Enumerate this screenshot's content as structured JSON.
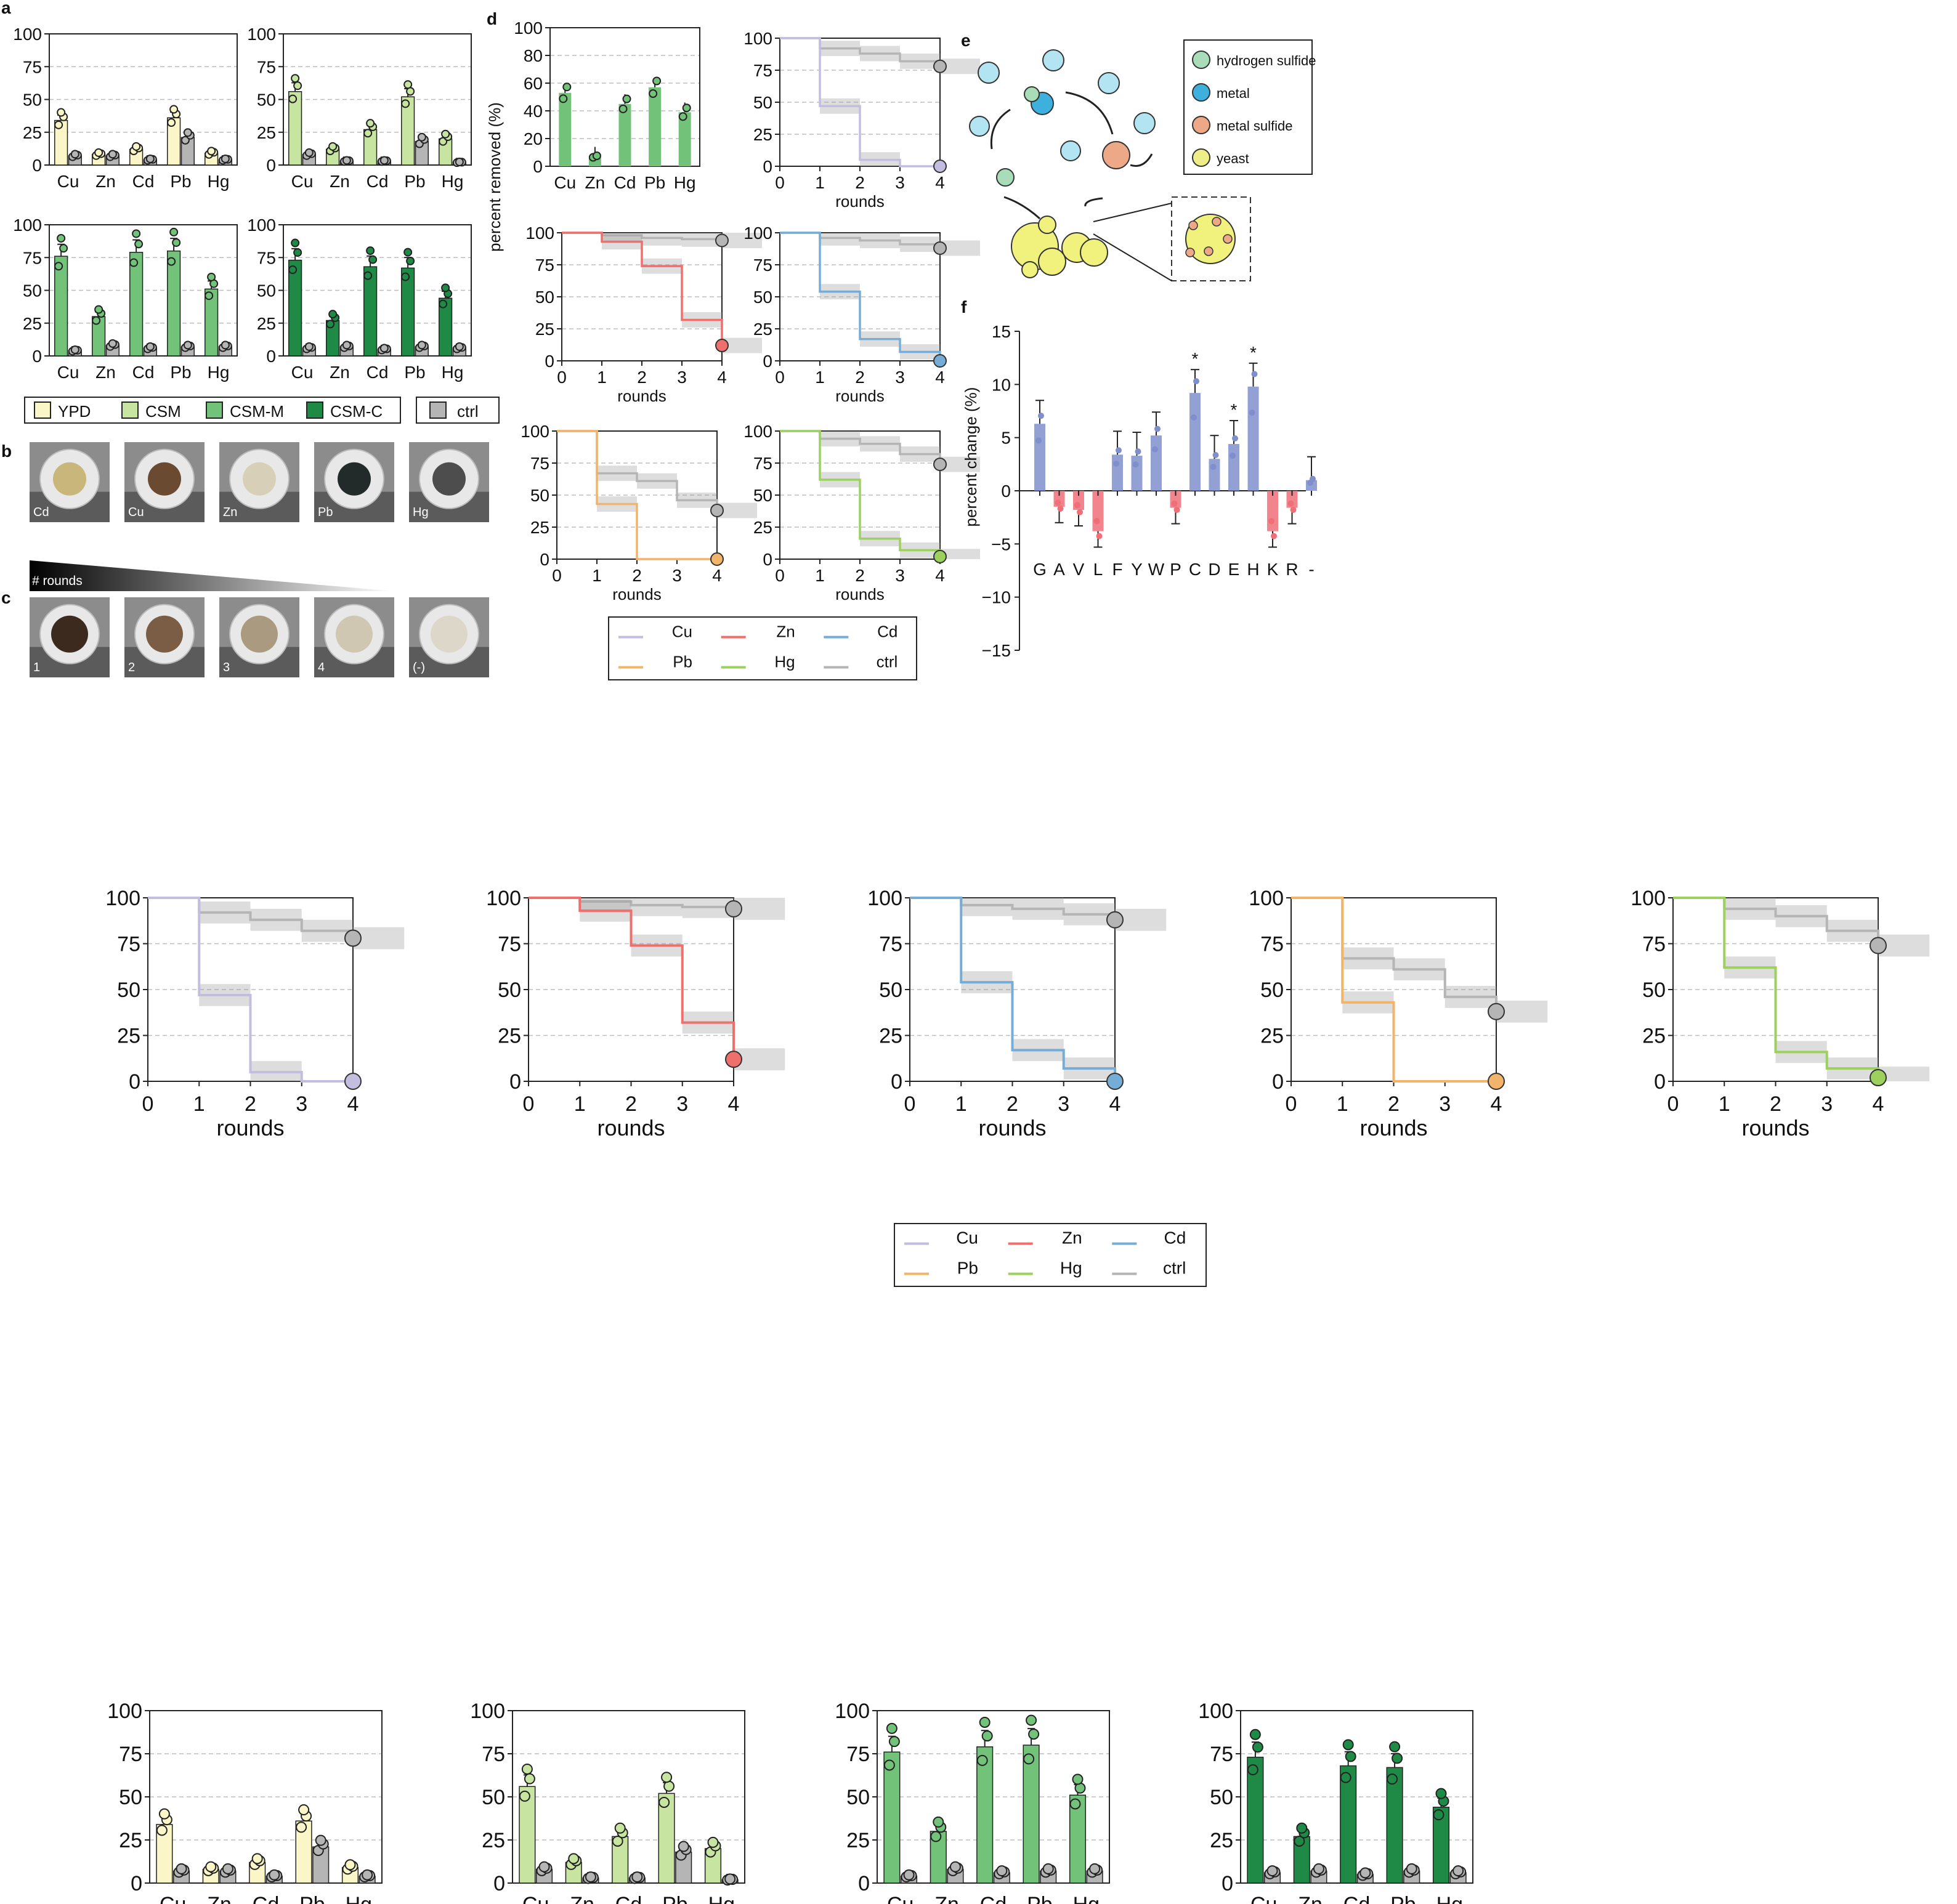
{
  "colors": {
    "Cu": "#c3bde0",
    "Zn": "#ef6f6c",
    "Cd": "#76add6",
    "Pb": "#f2b36a",
    "Hg": "#9bd15c",
    "ctrl": "#b5b5b5",
    "YPD": "#fbf6c8",
    "CSM": "#c7e4a0",
    "CSM-M": "#72c27a",
    "CSM-C": "#1e8a46",
    "pos": "#7f8fcc",
    "neg": "#ee6f78",
    "hydrogen sulfide": "#a9dcb8",
    "metal": "#3db0dd",
    "metal sulfide": "#eda888",
    "yeast": "#eeee88"
  },
  "panel_letters": [
    "a",
    "b",
    "c",
    "d",
    "e",
    "f"
  ],
  "panel_a": {
    "categories": [
      "Cu",
      "Zn",
      "Cd",
      "Pb",
      "Hg"
    ],
    "yticks": [
      "0",
      "25",
      "50",
      "75",
      "100"
    ],
    "legend": [
      "YPD",
      "CSM",
      "CSM-M",
      "CSM-C"
    ],
    "ctrl_label": "ctrl"
  },
  "panel_b": {
    "labels": [
      "Cd",
      "Cu",
      "Zn",
      "Pb",
      "Hg"
    ]
  },
  "panel_c": {
    "rounds_label": "# rounds",
    "labels": [
      "1",
      "2",
      "3",
      "4",
      "(-)"
    ]
  },
  "panel_d": {
    "bar_ylabel": "percent removed (%)",
    "step_xlabel": "rounds",
    "xticks": [
      "0",
      "1",
      "2",
      "3",
      "4"
    ],
    "yticks": [
      "0",
      "25",
      "50",
      "75",
      "100"
    ],
    "legend": [
      "Cu",
      "Zn",
      "Cd",
      "Pb",
      "Hg",
      "ctrl"
    ]
  },
  "panel_e": {
    "legend": [
      "hydrogen sulfide",
      "metal",
      "metal sulfide",
      "yeast"
    ]
  },
  "panel_f": {
    "ylabel": "percent change (%)",
    "yticks": [
      "15",
      "10",
      "5",
      "0",
      "−5",
      "−10",
      "−15"
    ],
    "categories": [
      "G",
      "A",
      "V",
      "L",
      "F",
      "Y",
      "W",
      "P",
      "C",
      "D",
      "E",
      "H",
      "K",
      "R",
      "-"
    ],
    "star": "*"
  },
  "chart_data": [
    {
      "type": "bar",
      "title": "",
      "xlabel": "",
      "ylabel": "",
      "ylim": [
        0,
        100
      ],
      "grid": true,
      "categories": [
        "Cu",
        "Zn",
        "Cd",
        "Pb",
        "Hg"
      ],
      "series": [
        {
          "name": "YPD",
          "values": [
            34,
            8,
            12,
            36,
            9
          ]
        },
        {
          "name": "ctrl",
          "values": [
            7,
            7,
            4,
            21,
            4
          ]
        }
      ]
    },
    {
      "type": "bar",
      "title": "",
      "xlabel": "",
      "ylabel": "",
      "ylim": [
        0,
        100
      ],
      "grid": true,
      "categories": [
        "Cu",
        "Zn",
        "Cd",
        "Pb",
        "Hg"
      ],
      "series": [
        {
          "name": "CSM",
          "values": [
            56,
            12,
            27,
            52,
            20
          ]
        },
        {
          "name": "ctrl",
          "values": [
            8,
            3,
            3,
            18,
            2
          ]
        }
      ]
    },
    {
      "type": "bar",
      "title": "",
      "xlabel": "",
      "ylabel": "",
      "ylim": [
        0,
        100
      ],
      "grid": true,
      "categories": [
        "Cu",
        "Zn",
        "Cd",
        "Pb",
        "Hg"
      ],
      "series": [
        {
          "name": "CSM-M",
          "values": [
            76,
            30,
            79,
            80,
            51
          ]
        },
        {
          "name": "ctrl",
          "values": [
            4,
            8,
            6,
            7,
            7
          ]
        }
      ]
    },
    {
      "type": "bar",
      "title": "",
      "xlabel": "",
      "ylabel": "",
      "ylim": [
        0,
        100
      ],
      "grid": true,
      "categories": [
        "Cu",
        "Zn",
        "Cd",
        "Pb",
        "Hg"
      ],
      "series": [
        {
          "name": "CSM-C",
          "values": [
            73,
            27,
            68,
            67,
            44
          ]
        },
        {
          "name": "ctrl",
          "values": [
            6,
            7,
            5,
            7,
            6
          ]
        }
      ]
    },
    {
      "type": "bar",
      "title": "",
      "xlabel": "",
      "ylabel": "percent removed (%)",
      "ylim": [
        0,
        100
      ],
      "grid": true,
      "categories": [
        "Cu",
        "Zn",
        "Cd",
        "Pb",
        "Hg"
      ],
      "series": [
        {
          "name": "",
          "values": [
            53,
            7,
            45,
            57,
            39
          ]
        }
      ]
    },
    {
      "type": "line",
      "title": "",
      "xlabel": "rounds",
      "ylabel": "",
      "ylim": [
        0,
        100
      ],
      "xlim": [
        0,
        4
      ],
      "grid": true,
      "x": [
        0,
        1,
        2,
        3,
        4
      ],
      "series": [
        {
          "name": "Cu",
          "values": [
            100,
            47,
            5,
            0,
            0
          ]
        },
        {
          "name": "ctrl",
          "values": [
            100,
            92,
            88,
            82,
            78
          ]
        }
      ]
    },
    {
      "type": "line",
      "title": "",
      "xlabel": "rounds",
      "ylabel": "",
      "ylim": [
        0,
        100
      ],
      "xlim": [
        0,
        4
      ],
      "grid": true,
      "x": [
        0,
        1,
        2,
        3,
        4
      ],
      "series": [
        {
          "name": "Zn",
          "values": [
            100,
            93,
            74,
            32,
            12
          ]
        },
        {
          "name": "ctrl",
          "values": [
            100,
            98,
            96,
            95,
            94
          ]
        }
      ]
    },
    {
      "type": "line",
      "title": "",
      "xlabel": "rounds",
      "ylabel": "",
      "ylim": [
        0,
        100
      ],
      "xlim": [
        0,
        4
      ],
      "grid": true,
      "x": [
        0,
        1,
        2,
        3,
        4
      ],
      "series": [
        {
          "name": "Cd",
          "values": [
            100,
            54,
            17,
            7,
            0
          ]
        },
        {
          "name": "ctrl",
          "values": [
            100,
            96,
            94,
            91,
            88
          ]
        }
      ]
    },
    {
      "type": "line",
      "title": "",
      "xlabel": "rounds",
      "ylabel": "",
      "ylim": [
        0,
        100
      ],
      "xlim": [
        0,
        4
      ],
      "grid": true,
      "x": [
        0,
        1,
        2,
        3,
        4
      ],
      "series": [
        {
          "name": "Pb",
          "values": [
            100,
            43,
            0,
            0,
            0
          ]
        },
        {
          "name": "ctrl",
          "values": [
            100,
            67,
            61,
            46,
            38
          ]
        }
      ]
    },
    {
      "type": "line",
      "title": "",
      "xlabel": "rounds",
      "ylabel": "",
      "ylim": [
        0,
        100
      ],
      "xlim": [
        0,
        4
      ],
      "grid": true,
      "x": [
        0,
        1,
        2,
        3,
        4
      ],
      "series": [
        {
          "name": "Hg",
          "values": [
            100,
            62,
            16,
            7,
            2
          ]
        },
        {
          "name": "ctrl",
          "values": [
            100,
            94,
            90,
            82,
            74
          ]
        }
      ]
    },
    {
      "type": "bar",
      "title": "",
      "xlabel": "",
      "ylabel": "percent change (%)",
      "ylim": [
        -15,
        15
      ],
      "grid": false,
      "categories": [
        "G",
        "A",
        "V",
        "L",
        "F",
        "Y",
        "W",
        "P",
        "C",
        "D",
        "E",
        "H",
        "K",
        "R",
        "-"
      ],
      "values": [
        6.3,
        -1.5,
        -1.8,
        -3.8,
        3.4,
        3.3,
        5.2,
        -1.6,
        9.2,
        3.0,
        4.4,
        9.8,
        -3.8,
        -1.6,
        1.0
      ],
      "significant": [
        "C",
        "E",
        "H"
      ]
    }
  ]
}
